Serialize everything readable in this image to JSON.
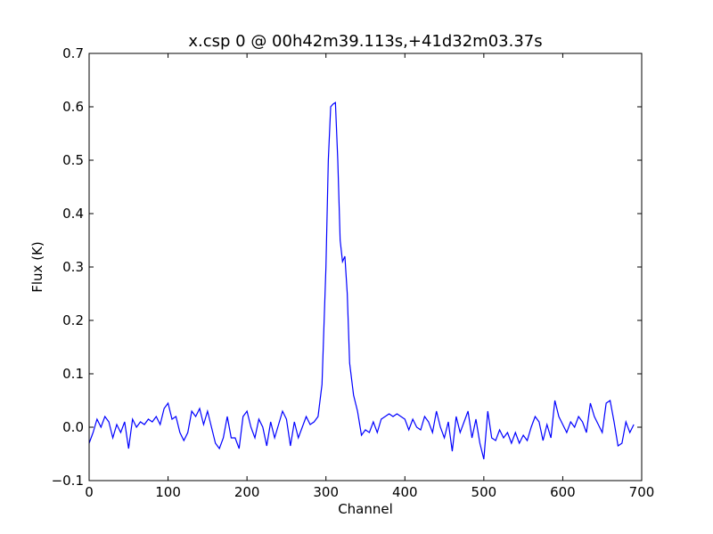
{
  "chart_data": {
    "type": "line",
    "title": "x.csp 0 @ 00h42m39.113s,+41d32m03.37s",
    "xlabel": "Channel",
    "ylabel": "Flux (K)",
    "xlim": [
      0,
      700
    ],
    "ylim": [
      -0.1,
      0.7
    ],
    "xticks": [
      0,
      100,
      200,
      300,
      400,
      500,
      600,
      700
    ],
    "yticks": [
      -0.1,
      0.0,
      0.1,
      0.2,
      0.3,
      0.4,
      0.5,
      0.6,
      0.7
    ],
    "xtick_labels": [
      "0",
      "100",
      "200",
      "300",
      "400",
      "500",
      "600",
      "700"
    ],
    "ytick_labels": [
      "−0.1",
      "0.0",
      "0.1",
      "0.2",
      "0.3",
      "0.4",
      "0.5",
      "0.6",
      "0.7"
    ],
    "grid": false,
    "line_color": "#0000ff",
    "series": [
      {
        "x": [
          0,
          5,
          10,
          15,
          20,
          25,
          30,
          35,
          40,
          45,
          50,
          55,
          60,
          65,
          70,
          75,
          80,
          85,
          90,
          95,
          100,
          105,
          110,
          115,
          120,
          125,
          130,
          135,
          140,
          145,
          150,
          155,
          160,
          165,
          170,
          175,
          180,
          185,
          190,
          195,
          200,
          205,
          210,
          215,
          220,
          225,
          230,
          235,
          240,
          245,
          250,
          255,
          260,
          265,
          270,
          275,
          280,
          285,
          290,
          295,
          300,
          303,
          306,
          309,
          312,
          315,
          318,
          321,
          324,
          327,
          330,
          335,
          340,
          345,
          350,
          355,
          360,
          365,
          370,
          375,
          380,
          385,
          390,
          395,
          400,
          405,
          410,
          415,
          420,
          425,
          430,
          435,
          440,
          445,
          450,
          455,
          460,
          465,
          470,
          475,
          480,
          485,
          490,
          495,
          500,
          505,
          510,
          515,
          520,
          525,
          530,
          535,
          540,
          545,
          550,
          555,
          560,
          565,
          570,
          575,
          580,
          585,
          590,
          595,
          600,
          605,
          610,
          615,
          620,
          625,
          630,
          635,
          640,
          645,
          650,
          655,
          660,
          665,
          670,
          675,
          680,
          685,
          690
        ],
        "values": [
          -0.03,
          -0.01,
          0.015,
          0.0,
          0.02,
          0.01,
          -0.02,
          0.005,
          -0.01,
          0.01,
          -0.04,
          0.015,
          0.0,
          0.01,
          0.005,
          0.015,
          0.01,
          0.02,
          0.005,
          0.035,
          0.045,
          0.015,
          0.02,
          -0.01,
          -0.025,
          -0.01,
          0.03,
          0.02,
          0.035,
          0.005,
          0.03,
          0.0,
          -0.03,
          -0.04,
          -0.02,
          0.02,
          -0.02,
          -0.02,
          -0.04,
          0.02,
          0.03,
          0.0,
          -0.02,
          0.015,
          0.0,
          -0.035,
          0.01,
          -0.02,
          0.005,
          0.03,
          0.015,
          -0.035,
          0.01,
          -0.02,
          0.0,
          0.02,
          0.005,
          0.01,
          0.02,
          0.08,
          0.3,
          0.5,
          0.6,
          0.605,
          0.608,
          0.5,
          0.35,
          0.31,
          0.32,
          0.25,
          0.12,
          0.06,
          0.03,
          -0.015,
          -0.005,
          -0.01,
          0.01,
          -0.01,
          0.015,
          0.02,
          0.025,
          0.02,
          0.025,
          0.02,
          0.015,
          -0.005,
          0.015,
          0.0,
          -0.005,
          0.02,
          0.01,
          -0.01,
          0.03,
          0.0,
          -0.02,
          0.01,
          -0.045,
          0.02,
          -0.01,
          0.01,
          0.03,
          -0.02,
          0.015,
          -0.03,
          -0.06,
          0.03,
          -0.02,
          -0.025,
          -0.005,
          -0.02,
          -0.01,
          -0.03,
          -0.01,
          -0.03,
          -0.015,
          -0.025,
          0.0,
          0.02,
          0.01,
          -0.025,
          0.005,
          -0.02,
          0.05,
          0.02,
          0.005,
          -0.01,
          0.01,
          0.0,
          0.02,
          0.01,
          -0.01,
          0.045,
          0.02,
          0.005,
          -0.01,
          0.045,
          0.05,
          0.01,
          -0.035,
          -0.03,
          0.01,
          -0.01,
          0.005
        ]
      }
    ]
  }
}
